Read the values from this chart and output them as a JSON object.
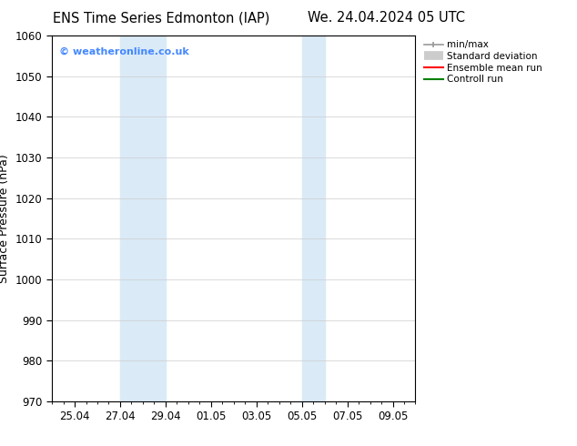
{
  "title_left": "ENS Time Series Edmonton (IAP)",
  "title_right": "We. 24.04.2024 05 UTC",
  "ylabel": "Surface Pressure (hPa)",
  "ylim": [
    970,
    1060
  ],
  "yticks": [
    970,
    980,
    990,
    1000,
    1010,
    1020,
    1030,
    1040,
    1050,
    1060
  ],
  "xtick_labels": [
    "25.04",
    "27.04",
    "29.04",
    "01.05",
    "03.05",
    "05.05",
    "07.05",
    "09.05"
  ],
  "xtick_positions": [
    2,
    6,
    10,
    14,
    18,
    22,
    26,
    30
  ],
  "xlim": [
    0,
    32
  ],
  "shaded_regions": [
    {
      "start": 6,
      "end": 10,
      "color": "#daeaf7"
    },
    {
      "start": 22,
      "end": 24,
      "color": "#daeaf7"
    }
  ],
  "watermark_text": "© weatheronline.co.uk",
  "watermark_color": "#4488ff",
  "legend_items": [
    {
      "label": "min/max",
      "color": "#aaaaaa",
      "lw": 1.2
    },
    {
      "label": "Standard deviation",
      "color": "#cccccc",
      "lw": 7
    },
    {
      "label": "Ensemble mean run",
      "color": "red",
      "lw": 1.5
    },
    {
      "label": "Controll run",
      "color": "green",
      "lw": 1.5
    }
  ],
  "bg_color": "#ffffff",
  "axes_bg_color": "#ffffff",
  "grid_color": "#cccccc",
  "title_fontsize": 10.5,
  "label_fontsize": 9,
  "tick_fontsize": 8.5,
  "legend_fontsize": 7.5
}
